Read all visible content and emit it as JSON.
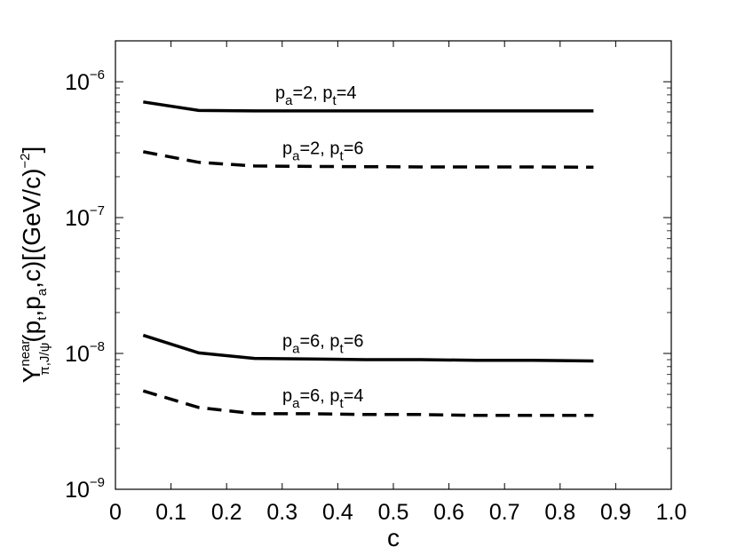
{
  "chart_data": {
    "type": "line",
    "xlabel": "c",
    "ylabel": {
      "base": "Y",
      "sup": "near",
      "sub": "π,J/ψ",
      "rest": "(p",
      "sub_t": "t",
      "mid": ",p",
      "sub_a": "a",
      "tail": ",c)[(GeV/c)",
      "exp": "−2",
      "close": "]"
    },
    "xlim": [
      0,
      1.0
    ],
    "ylim": [
      1e-09,
      2e-06
    ],
    "yscale": "log",
    "grid": false,
    "xticks": [
      "0",
      "0.1",
      "0.2",
      "0.3",
      "0.4",
      "0.5",
      "0.6",
      "0.7",
      "0.8",
      "0.9",
      "1.0"
    ],
    "xtick_values": [
      0,
      0.1,
      0.2,
      0.3,
      0.4,
      0.5,
      0.6,
      0.7,
      0.8,
      0.9,
      1.0
    ],
    "yticks": [
      {
        "base": "10",
        "exp": "−9",
        "value": 1e-09
      },
      {
        "base": "10",
        "exp": "−8",
        "value": 1e-08
      },
      {
        "base": "10",
        "exp": "−7",
        "value": 1e-07
      },
      {
        "base": "10",
        "exp": "−6",
        "value": 1e-06
      }
    ],
    "series": [
      {
        "name": "pa=2, pt=4",
        "label": {
          "p1": "p",
          "s1": "a",
          "m": "=2, p",
          "s2": "t",
          "e": "=4"
        },
        "style": "solid",
        "x": [
          0.05,
          0.15,
          0.25,
          0.35,
          0.45,
          0.55,
          0.65,
          0.75,
          0.86
        ],
        "y": [
          7.1e-07,
          6.15e-07,
          6.1e-07,
          6.1e-07,
          6.1e-07,
          6.1e-07,
          6.1e-07,
          6.1e-07,
          6.1e-07
        ]
      },
      {
        "name": "pa=2, pt=6",
        "label": {
          "p1": "p",
          "s1": "a",
          "m": "=2, p",
          "s2": "t",
          "e": "=6"
        },
        "style": "dashed",
        "x": [
          0.05,
          0.15,
          0.25,
          0.35,
          0.45,
          0.55,
          0.65,
          0.75,
          0.86
        ],
        "y": [
          3.05e-07,
          2.55e-07,
          2.4e-07,
          2.38e-07,
          2.37e-07,
          2.36e-07,
          2.36e-07,
          2.36e-07,
          2.35e-07
        ]
      },
      {
        "name": "pa=6, pt=6",
        "label": {
          "p1": "p",
          "s1": "a",
          "m": "=6, p",
          "s2": "t",
          "e": "=6"
        },
        "style": "solid",
        "x": [
          0.05,
          0.15,
          0.25,
          0.35,
          0.45,
          0.55,
          0.65,
          0.75,
          0.86
        ],
        "y": [
          1.36e-08,
          1.01e-08,
          9.2e-09,
          9.1e-09,
          9e-09,
          9e-09,
          8.9e-09,
          8.9e-09,
          8.8e-09
        ]
      },
      {
        "name": "pa=6, pt=4",
        "label": {
          "p1": "p",
          "s1": "a",
          "m": "=6, p",
          "s2": "t",
          "e": "=4"
        },
        "style": "dashed",
        "x": [
          0.05,
          0.15,
          0.25,
          0.35,
          0.45,
          0.55,
          0.65,
          0.75,
          0.86
        ],
        "y": [
          5.3e-09,
          4e-09,
          3.6e-09,
          3.6e-09,
          3.55e-09,
          3.55e-09,
          3.5e-09,
          3.5e-09,
          3.5e-09
        ]
      }
    ]
  }
}
